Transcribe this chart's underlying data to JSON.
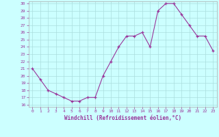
{
  "x": [
    0,
    1,
    2,
    3,
    4,
    5,
    6,
    7,
    8,
    9,
    10,
    11,
    12,
    13,
    14,
    15,
    16,
    17,
    18,
    19,
    20,
    21,
    22,
    23
  ],
  "y": [
    21,
    19.5,
    18,
    17.5,
    17,
    16.5,
    16.5,
    17,
    17,
    20,
    22,
    24,
    25.5,
    25.5,
    26,
    24,
    29,
    30,
    30,
    28.5,
    27,
    25.5,
    25.5,
    23.5
  ],
  "xlabel": "Windchill (Refroidissement éolien,°C)",
  "ylim": [
    16,
    30
  ],
  "xlim": [
    -0.5,
    23.5
  ],
  "yticks": [
    16,
    17,
    18,
    19,
    20,
    21,
    22,
    23,
    24,
    25,
    26,
    27,
    28,
    29,
    30
  ],
  "xticks": [
    0,
    1,
    2,
    3,
    4,
    5,
    6,
    7,
    8,
    9,
    10,
    11,
    12,
    13,
    14,
    15,
    16,
    17,
    18,
    19,
    20,
    21,
    22,
    23
  ],
  "line_color": "#993399",
  "bg_color": "#ccffff",
  "grid_color": "#aadddd",
  "tick_color": "#993399",
  "label_color": "#993399"
}
